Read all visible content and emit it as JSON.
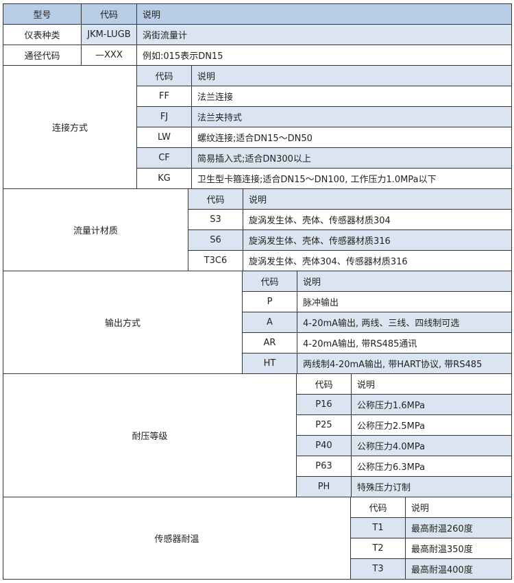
{
  "header": {
    "model": "型号",
    "code": "代码",
    "desc": "说明"
  },
  "top_rows": [
    {
      "label": "仪表种类",
      "code": "JKM-LUGB",
      "desc": "涡街流量计",
      "shaded": true
    },
    {
      "label": "通径代码",
      "code": "—XXX",
      "desc": "例如:015表示DN15",
      "shaded": false
    }
  ],
  "sections": [
    {
      "label": "连接方式",
      "code_header": "代码",
      "desc_header": "说明",
      "header_shaded": true,
      "rows": [
        {
          "code": "FF",
          "desc": "法兰连接",
          "shaded": false
        },
        {
          "code": "FJ",
          "desc": "法兰夹持式",
          "shaded": true
        },
        {
          "code": "LW",
          "desc": "螺纹连接;适合DN15～DN50",
          "shaded": false
        },
        {
          "code": "CF",
          "desc": "简易插入式;适合DN300以上",
          "shaded": true
        },
        {
          "code": "KG",
          "desc": "卫生型卡箍连接;适合DN15～DN100, 工作压力1.0MPa以下",
          "shaded": false
        }
      ]
    },
    {
      "label": "流量计材质",
      "code_header": "代码",
      "desc_header": "说明",
      "header_shaded": true,
      "rows": [
        {
          "code": "S3",
          "desc": "旋涡发生体、壳体、传感器材质304",
          "shaded": false
        },
        {
          "code": "S6",
          "desc": "旋涡发生体、壳体、传感器材质316",
          "shaded": true
        },
        {
          "code": "T3C6",
          "desc": "旋涡发生体、壳体304、传感器材质316",
          "shaded": false
        }
      ]
    },
    {
      "label": "输出方式",
      "code_header": "代码",
      "desc_header": "说明",
      "header_shaded": true,
      "rows": [
        {
          "code": "P",
          "desc": "脉冲输出",
          "shaded": false
        },
        {
          "code": "A",
          "desc": "4-20mA输出, 两线、三线、四线制可选",
          "shaded": true
        },
        {
          "code": "AR",
          "desc": "4-20mA输出, 带RS485通讯",
          "shaded": false
        },
        {
          "code": "HT",
          "desc": "两线制4-20mA输出, 带HART协议, 带RS485",
          "shaded": true
        }
      ]
    },
    {
      "label": "耐压等级",
      "code_header": "代码",
      "desc_header": "说明",
      "header_shaded": false,
      "rows": [
        {
          "code": "P16",
          "desc": "公称压力1.6MPa",
          "shaded": true
        },
        {
          "code": "P25",
          "desc": "公称压力2.5MPa",
          "shaded": false
        },
        {
          "code": "P40",
          "desc": "公称压力4.0MPa",
          "shaded": true
        },
        {
          "code": "P63",
          "desc": "公称压力6.3MPa",
          "shaded": false
        },
        {
          "code": "PH",
          "desc": "特殊压力订制",
          "shaded": true
        }
      ]
    },
    {
      "label": "传感器耐温",
      "code_header": "代码",
      "desc_header": "说明",
      "header_shaded": false,
      "rows": [
        {
          "code": "T1",
          "desc": "最高耐温260度",
          "shaded": true
        },
        {
          "code": "T2",
          "desc": "最高耐温350度",
          "shaded": false
        },
        {
          "code": "T3",
          "desc": "最高耐温400度",
          "shaded": true
        }
      ]
    }
  ]
}
